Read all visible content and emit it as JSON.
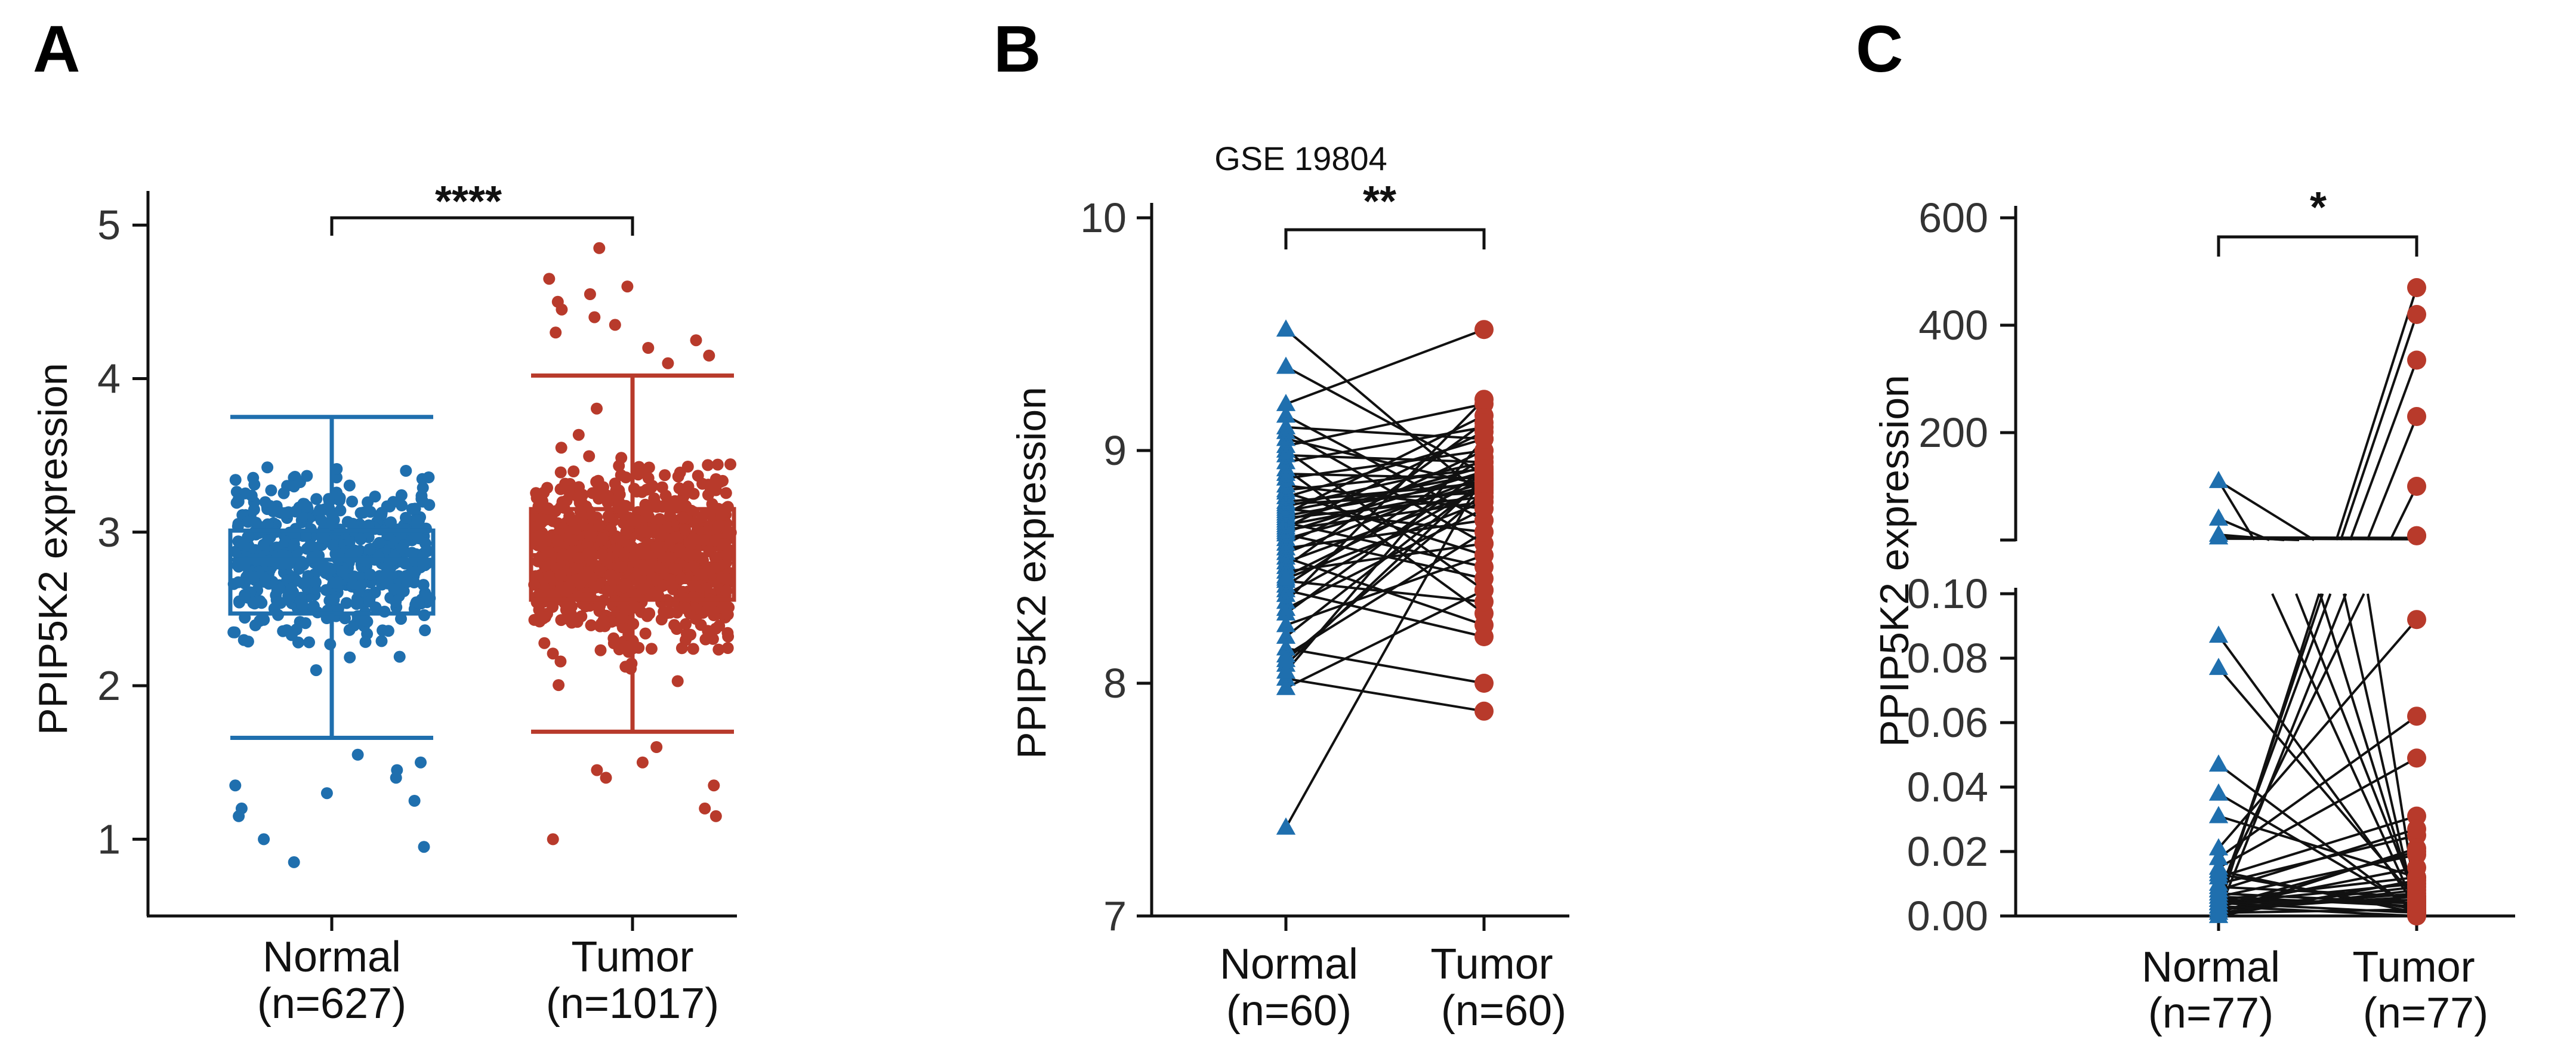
{
  "colors": {
    "normal": "#1f6fae",
    "tumor": "#b83a2b",
    "line": "#111111"
  },
  "chart_data": [
    {
      "panel": "A",
      "type": "box",
      "title": "",
      "ylabel": "PPIP5K2 expression",
      "ylim": [
        0.5,
        5.3
      ],
      "yticks": [
        "1",
        "2",
        "3",
        "4",
        "5"
      ],
      "significance": "****",
      "groups": [
        {
          "name": "Normal",
          "n_label": "(n=627)",
          "n": 627,
          "min": 1.66,
          "q1": 2.47,
          "median": 2.82,
          "q3": 3.01,
          "max": 3.75,
          "outliers": [
            1.55,
            1.5,
            1.45,
            1.4,
            1.35,
            1.3,
            1.25,
            1.2,
            1.15,
            1.0,
            0.95,
            0.85
          ]
        },
        {
          "name": "Tumor",
          "n_label": "(n=1017)",
          "n": 1017,
          "min": 1.7,
          "q1": 2.56,
          "median": 2.85,
          "q3": 3.15,
          "max": 4.02,
          "outliers": [
            4.85,
            4.65,
            4.6,
            4.55,
            4.5,
            4.45,
            4.4,
            4.35,
            4.3,
            4.25,
            4.2,
            4.15,
            4.1,
            1.6,
            1.5,
            1.45,
            1.4,
            1.35,
            1.2,
            1.15,
            1.0
          ]
        }
      ]
    },
    {
      "panel": "B",
      "type": "paired",
      "title": "GSE 19804",
      "ylabel": "PPIP5K2 expression",
      "ylim": [
        7,
        10
      ],
      "yticks": [
        "7",
        "8",
        "9",
        "10"
      ],
      "significance": "**",
      "groups": [
        {
          "name": "Normal",
          "n_label": "(n=60)"
        },
        {
          "name": "Tumor",
          "n_label": "(n=60)"
        }
      ],
      "pairs": [
        [
          9.52,
          8.8
        ],
        [
          9.36,
          8.9
        ],
        [
          9.2,
          9.52
        ],
        [
          9.15,
          8.7
        ],
        [
          9.1,
          9.05
        ],
        [
          9.08,
          8.6
        ],
        [
          9.05,
          8.85
        ],
        [
          9.02,
          9.2
        ],
        [
          9.0,
          8.4
        ],
        [
          8.98,
          8.95
        ],
        [
          8.95,
          9.1
        ],
        [
          8.92,
          8.3
        ],
        [
          8.9,
          8.88
        ],
        [
          8.88,
          9.0
        ],
        [
          8.85,
          8.75
        ],
        [
          8.83,
          8.92
        ],
        [
          8.82,
          8.55
        ],
        [
          8.8,
          9.05
        ],
        [
          8.78,
          8.86
        ],
        [
          8.77,
          8.82
        ],
        [
          8.76,
          8.95
        ],
        [
          8.75,
          8.65
        ],
        [
          8.74,
          8.9
        ],
        [
          8.73,
          9.15
        ],
        [
          8.72,
          8.87
        ],
        [
          8.71,
          8.8
        ],
        [
          8.7,
          8.93
        ],
        [
          8.69,
          8.5
        ],
        [
          8.68,
          8.84
        ],
        [
          8.67,
          9.08
        ],
        [
          8.66,
          8.78
        ],
        [
          8.65,
          8.91
        ],
        [
          8.64,
          8.45
        ],
        [
          8.62,
          8.86
        ],
        [
          8.6,
          9.0
        ],
        [
          8.58,
          8.7
        ],
        [
          8.56,
          8.89
        ],
        [
          8.54,
          8.25
        ],
        [
          8.52,
          8.83
        ],
        [
          8.5,
          9.12
        ],
        [
          8.48,
          8.6
        ],
        [
          8.46,
          8.88
        ],
        [
          8.44,
          8.35
        ],
        [
          8.42,
          8.97
        ],
        [
          8.4,
          8.2
        ],
        [
          8.38,
          8.85
        ],
        [
          8.35,
          9.22
        ],
        [
          8.32,
          8.75
        ],
        [
          8.3,
          8.92
        ],
        [
          8.25,
          8.55
        ],
        [
          8.2,
          8.87
        ],
        [
          8.15,
          8.0
        ],
        [
          8.12,
          8.65
        ],
        [
          8.08,
          8.88
        ],
        [
          8.02,
          7.88
        ],
        [
          7.98,
          8.4
        ],
        [
          8.05,
          9.05
        ],
        [
          8.1,
          8.82
        ],
        [
          7.38,
          8.9
        ],
        [
          8.45,
          8.78
        ]
      ]
    },
    {
      "panel": "C",
      "type": "paired-broken-axis",
      "title": "",
      "ylabel": "PPIP5K2 expression",
      "upper_ylim": [
        0,
        600
      ],
      "upper_yticks": [
        "200",
        "400",
        "600"
      ],
      "lower_ylim": [
        0,
        0.1
      ],
      "lower_yticks": [
        "0.00",
        "0.02",
        "0.04",
        "0.06",
        "0.08",
        "0.10"
      ],
      "significance": "*",
      "groups": [
        {
          "name": "Normal",
          "n_label": "(n=77)"
        },
        {
          "name": "Tumor",
          "n_label": "(n=77)"
        }
      ],
      "pairs_upper_tumor": [
        470,
        420,
        335,
        230,
        100
      ],
      "normal_upper": [
        110,
        40,
        10,
        5
      ],
      "tumor_at_break": [
        1,
        1
      ],
      "pairs_lower": [
        [
          0.087,
          0.003
        ],
        [
          0.077,
          0.005
        ],
        [
          0.047,
          0.001
        ],
        [
          0.038,
          0.002
        ],
        [
          0.031,
          0.012
        ],
        [
          0.021,
          0.092
        ],
        [
          0.018,
          0.062
        ],
        [
          0.015,
          0.049
        ],
        [
          0.012,
          0.031
        ],
        [
          0.01,
          0.025
        ],
        [
          0.009,
          0.006
        ],
        [
          0.008,
          0.027
        ],
        [
          0.007,
          0.004
        ],
        [
          0.006,
          0.019
        ],
        [
          0.005,
          0.004
        ],
        [
          0.004,
          0.01
        ],
        [
          0.003,
          0.015
        ],
        [
          0.002,
          0.006
        ],
        [
          0.002,
          0.007
        ],
        [
          0.001,
          0.008
        ],
        [
          0.001,
          0.021
        ],
        [
          0.0,
          0.011
        ],
        [
          0.005,
          0.012
        ],
        [
          0.003,
          0.02
        ],
        [
          0.004,
          0.001
        ],
        [
          0.006,
          0.003
        ],
        [
          0.002,
          0.009
        ],
        [
          0.001,
          0.002
        ],
        [
          0.003,
          0.0
        ],
        [
          0.004,
          0.005
        ],
        [
          0.014,
          0.001
        ],
        [
          0.013,
          0.002
        ]
      ],
      "lines_to_upper_from_lower": [
        0.002,
        0.004,
        0.006,
        0.001,
        0.008
      ],
      "lines_from_upper_to_lower": [
        0.002,
        0.005,
        0.003,
        0.001,
        0.004
      ]
    }
  ]
}
